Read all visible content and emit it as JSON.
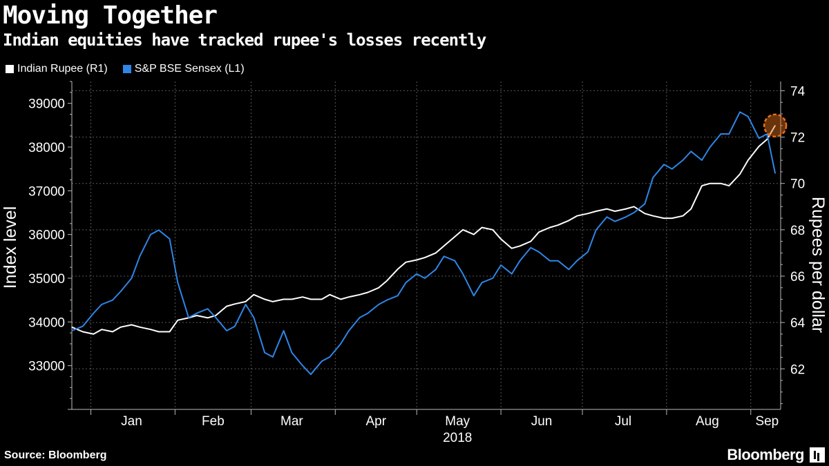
{
  "header": {
    "title": "Moving Together",
    "subtitle": "Indian equities have tracked rupee's losses recently"
  },
  "legend": [
    {
      "label": "Indian Rupee (R1)",
      "color": "#ffffff"
    },
    {
      "label": "S&P BSE Sensex (L1)",
      "color": "#2f86e6"
    }
  ],
  "footer": {
    "source": "Source: Bloomberg",
    "brand": "Bloomberg"
  },
  "chart_data": {
    "type": "line",
    "title": "Moving Together",
    "subtitle": "Indian equities have tracked rupee's losses recently",
    "grid": true,
    "legend_position": "top-left",
    "x_axis": {
      "labels": [
        "Jan",
        "Feb",
        "Mar",
        "Apr",
        "May",
        "Jun",
        "Jul",
        "Aug",
        "Sep"
      ],
      "year_label": "2018",
      "range": [
        "2017-12-25",
        "2018-09-12"
      ]
    },
    "y_left": {
      "label": "Index level",
      "ticks": [
        33000,
        34000,
        35000,
        36000,
        37000,
        38000,
        39000
      ],
      "range": [
        32000,
        39500
      ]
    },
    "y_right": {
      "label": "Rupees per dollar",
      "ticks": [
        62,
        64,
        66,
        68,
        70,
        72,
        74
      ],
      "range": [
        60.25,
        74.4
      ]
    },
    "series": [
      {
        "name": "Indian Rupee (R1)",
        "axis": "right",
        "color": "#ffffff",
        "points": [
          [
            "2017-12-25",
            63.8
          ],
          [
            "2017-12-29",
            63.6
          ],
          [
            "2018-01-02",
            63.5
          ],
          [
            "2018-01-05",
            63.7
          ],
          [
            "2018-01-09",
            63.6
          ],
          [
            "2018-01-12",
            63.8
          ],
          [
            "2018-01-16",
            63.9
          ],
          [
            "2018-01-19",
            63.8
          ],
          [
            "2018-01-23",
            63.7
          ],
          [
            "2018-01-26",
            63.6
          ],
          [
            "2018-01-30",
            63.6
          ],
          [
            "2018-02-02",
            64.1
          ],
          [
            "2018-02-06",
            64.2
          ],
          [
            "2018-02-09",
            64.3
          ],
          [
            "2018-02-13",
            64.2
          ],
          [
            "2018-02-16",
            64.3
          ],
          [
            "2018-02-20",
            64.7
          ],
          [
            "2018-02-23",
            64.8
          ],
          [
            "2018-02-27",
            64.9
          ],
          [
            "2018-03-02",
            65.2
          ],
          [
            "2018-03-06",
            65.0
          ],
          [
            "2018-03-09",
            64.9
          ],
          [
            "2018-03-13",
            65.0
          ],
          [
            "2018-03-16",
            65.0
          ],
          [
            "2018-03-20",
            65.1
          ],
          [
            "2018-03-23",
            65.0
          ],
          [
            "2018-03-27",
            65.0
          ],
          [
            "2018-03-30",
            65.2
          ],
          [
            "2018-04-03",
            65.0
          ],
          [
            "2018-04-06",
            65.1
          ],
          [
            "2018-04-10",
            65.2
          ],
          [
            "2018-04-13",
            65.3
          ],
          [
            "2018-04-17",
            65.5
          ],
          [
            "2018-04-20",
            65.8
          ],
          [
            "2018-04-24",
            66.3
          ],
          [
            "2018-04-27",
            66.6
          ],
          [
            "2018-05-01",
            66.7
          ],
          [
            "2018-05-04",
            66.8
          ],
          [
            "2018-05-08",
            67.0
          ],
          [
            "2018-05-11",
            67.3
          ],
          [
            "2018-05-15",
            67.7
          ],
          [
            "2018-05-18",
            68.0
          ],
          [
            "2018-05-22",
            67.8
          ],
          [
            "2018-05-25",
            68.1
          ],
          [
            "2018-05-29",
            68.0
          ],
          [
            "2018-06-01",
            67.6
          ],
          [
            "2018-06-05",
            67.2
          ],
          [
            "2018-06-08",
            67.3
          ],
          [
            "2018-06-12",
            67.5
          ],
          [
            "2018-06-15",
            67.9
          ],
          [
            "2018-06-19",
            68.1
          ],
          [
            "2018-06-22",
            68.2
          ],
          [
            "2018-06-26",
            68.4
          ],
          [
            "2018-06-29",
            68.6
          ],
          [
            "2018-07-03",
            68.7
          ],
          [
            "2018-07-06",
            68.8
          ],
          [
            "2018-07-10",
            68.9
          ],
          [
            "2018-07-13",
            68.8
          ],
          [
            "2018-07-17",
            68.9
          ],
          [
            "2018-07-20",
            69.0
          ],
          [
            "2018-07-24",
            68.7
          ],
          [
            "2018-07-27",
            68.6
          ],
          [
            "2018-07-31",
            68.5
          ],
          [
            "2018-08-03",
            68.5
          ],
          [
            "2018-08-07",
            68.6
          ],
          [
            "2018-08-10",
            68.9
          ],
          [
            "2018-08-14",
            69.9
          ],
          [
            "2018-08-17",
            70.0
          ],
          [
            "2018-08-21",
            70.0
          ],
          [
            "2018-08-24",
            69.9
          ],
          [
            "2018-08-28",
            70.4
          ],
          [
            "2018-08-31",
            71.0
          ],
          [
            "2018-09-04",
            71.6
          ],
          [
            "2018-09-07",
            71.9
          ],
          [
            "2018-09-10",
            72.5
          ]
        ]
      },
      {
        "name": "S&P BSE Sensex (L1)",
        "axis": "left",
        "color": "#2f86e6",
        "points": [
          [
            "2017-12-25",
            33800
          ],
          [
            "2017-12-29",
            33900
          ],
          [
            "2018-01-02",
            34200
          ],
          [
            "2018-01-05",
            34400
          ],
          [
            "2018-01-09",
            34500
          ],
          [
            "2018-01-12",
            34700
          ],
          [
            "2018-01-16",
            35000
          ],
          [
            "2018-01-19",
            35500
          ],
          [
            "2018-01-23",
            36000
          ],
          [
            "2018-01-26",
            36100
          ],
          [
            "2018-01-30",
            35900
          ],
          [
            "2018-02-02",
            34900
          ],
          [
            "2018-02-06",
            34100
          ],
          [
            "2018-02-09",
            34200
          ],
          [
            "2018-02-13",
            34300
          ],
          [
            "2018-02-16",
            34100
          ],
          [
            "2018-02-20",
            33800
          ],
          [
            "2018-02-23",
            33900
          ],
          [
            "2018-02-27",
            34400
          ],
          [
            "2018-03-02",
            34100
          ],
          [
            "2018-03-06",
            33300
          ],
          [
            "2018-03-09",
            33200
          ],
          [
            "2018-03-13",
            33800
          ],
          [
            "2018-03-16",
            33300
          ],
          [
            "2018-03-20",
            33000
          ],
          [
            "2018-03-23",
            32800
          ],
          [
            "2018-03-27",
            33100
          ],
          [
            "2018-03-30",
            33200
          ],
          [
            "2018-04-03",
            33500
          ],
          [
            "2018-04-06",
            33800
          ],
          [
            "2018-04-10",
            34100
          ],
          [
            "2018-04-13",
            34200
          ],
          [
            "2018-04-17",
            34400
          ],
          [
            "2018-04-20",
            34500
          ],
          [
            "2018-04-24",
            34600
          ],
          [
            "2018-04-27",
            34900
          ],
          [
            "2018-05-01",
            35100
          ],
          [
            "2018-05-04",
            35000
          ],
          [
            "2018-05-08",
            35200
          ],
          [
            "2018-05-11",
            35500
          ],
          [
            "2018-05-15",
            35400
          ],
          [
            "2018-05-18",
            35100
          ],
          [
            "2018-05-22",
            34600
          ],
          [
            "2018-05-25",
            34900
          ],
          [
            "2018-05-29",
            35000
          ],
          [
            "2018-06-01",
            35300
          ],
          [
            "2018-06-05",
            35100
          ],
          [
            "2018-06-08",
            35400
          ],
          [
            "2018-06-12",
            35700
          ],
          [
            "2018-06-15",
            35600
          ],
          [
            "2018-06-19",
            35400
          ],
          [
            "2018-06-22",
            35400
          ],
          [
            "2018-06-26",
            35200
          ],
          [
            "2018-06-29",
            35400
          ],
          [
            "2018-07-03",
            35600
          ],
          [
            "2018-07-06",
            36100
          ],
          [
            "2018-07-10",
            36400
          ],
          [
            "2018-07-13",
            36300
          ],
          [
            "2018-07-17",
            36400
          ],
          [
            "2018-07-20",
            36500
          ],
          [
            "2018-07-24",
            36700
          ],
          [
            "2018-07-27",
            37300
          ],
          [
            "2018-07-31",
            37600
          ],
          [
            "2018-08-03",
            37500
          ],
          [
            "2018-08-07",
            37700
          ],
          [
            "2018-08-10",
            37900
          ],
          [
            "2018-08-14",
            37700
          ],
          [
            "2018-08-17",
            38000
          ],
          [
            "2018-08-21",
            38300
          ],
          [
            "2018-08-24",
            38300
          ],
          [
            "2018-08-28",
            38800
          ],
          [
            "2018-08-31",
            38700
          ],
          [
            "2018-09-04",
            38200
          ],
          [
            "2018-09-07",
            38300
          ],
          [
            "2018-09-10",
            37400
          ]
        ]
      }
    ],
    "annotation": {
      "type": "circle",
      "color": "#e8701a",
      "target": "Indian Rupee (R1)",
      "date": "2018-09-10"
    }
  }
}
